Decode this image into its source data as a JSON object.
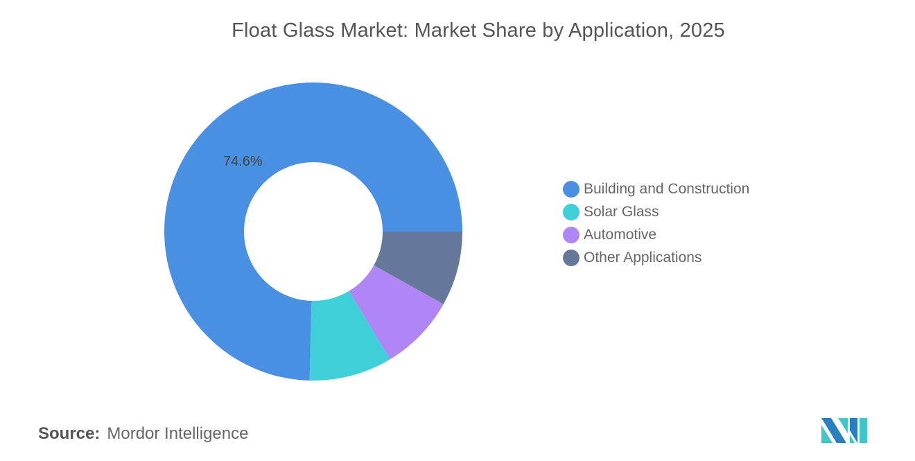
{
  "chart_data": {
    "type": "pie",
    "variant": "donut",
    "title": "Float Glass Market: Market Share by Application, 2025",
    "categories": [
      "Building and Construction",
      "Solar Glass",
      "Automotive",
      "Other Applications"
    ],
    "values": [
      74.6,
      9.0,
      8.3,
      8.1
    ],
    "colors": [
      "#4a90e2",
      "#3ecfd8",
      "#b085f5",
      "#64789a"
    ],
    "data_labels": {
      "Building and Construction": "74.6%"
    },
    "legend_position": "right"
  },
  "source": {
    "label": "Source:",
    "text": "Mordor Intelligence"
  },
  "logo": {
    "name": "mordor-intelligence-logo",
    "colors": [
      "#2a7fc1",
      "#3ec6c9"
    ]
  }
}
